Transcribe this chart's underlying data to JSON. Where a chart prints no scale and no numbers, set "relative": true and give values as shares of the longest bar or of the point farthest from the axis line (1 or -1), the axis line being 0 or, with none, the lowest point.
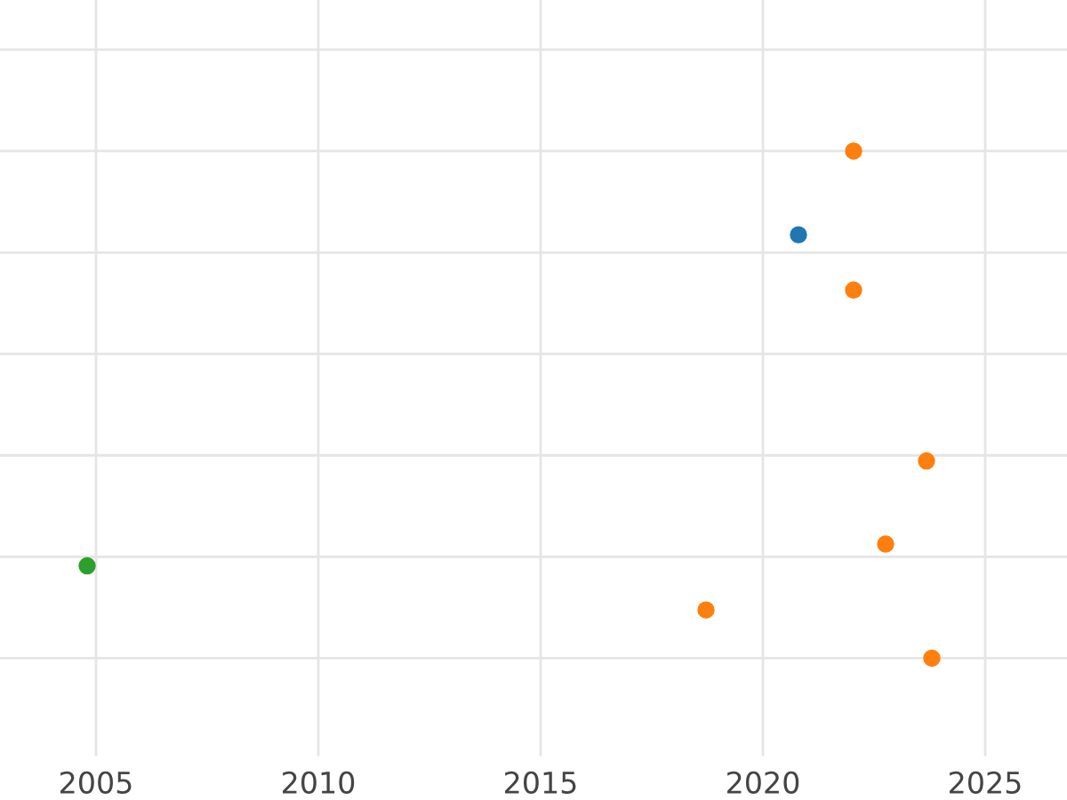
{
  "chart_data": {
    "type": "scatter",
    "relative": true,
    "xlim": [
      2002.84,
      2026.84
    ],
    "xticks": [
      2005,
      2010,
      2015,
      2020,
      2025
    ],
    "grid": true,
    "marker": "circle",
    "legend": false,
    "series": [
      {
        "color": "#ff7f0e",
        "x": [
          2022.04,
          2022.04,
          2023.68,
          2022.76,
          2018.72,
          2023.8
        ],
        "values": [
          1.0,
          0.726,
          0.389,
          0.225,
          0.095,
          0.0
        ]
      },
      {
        "color": "#1f77b4",
        "x": [
          2020.8
        ],
        "values": [
          0.835
        ]
      },
      {
        "color": "#2ca02c",
        "x": [
          2004.8
        ],
        "values": [
          0.182
        ]
      }
    ]
  }
}
